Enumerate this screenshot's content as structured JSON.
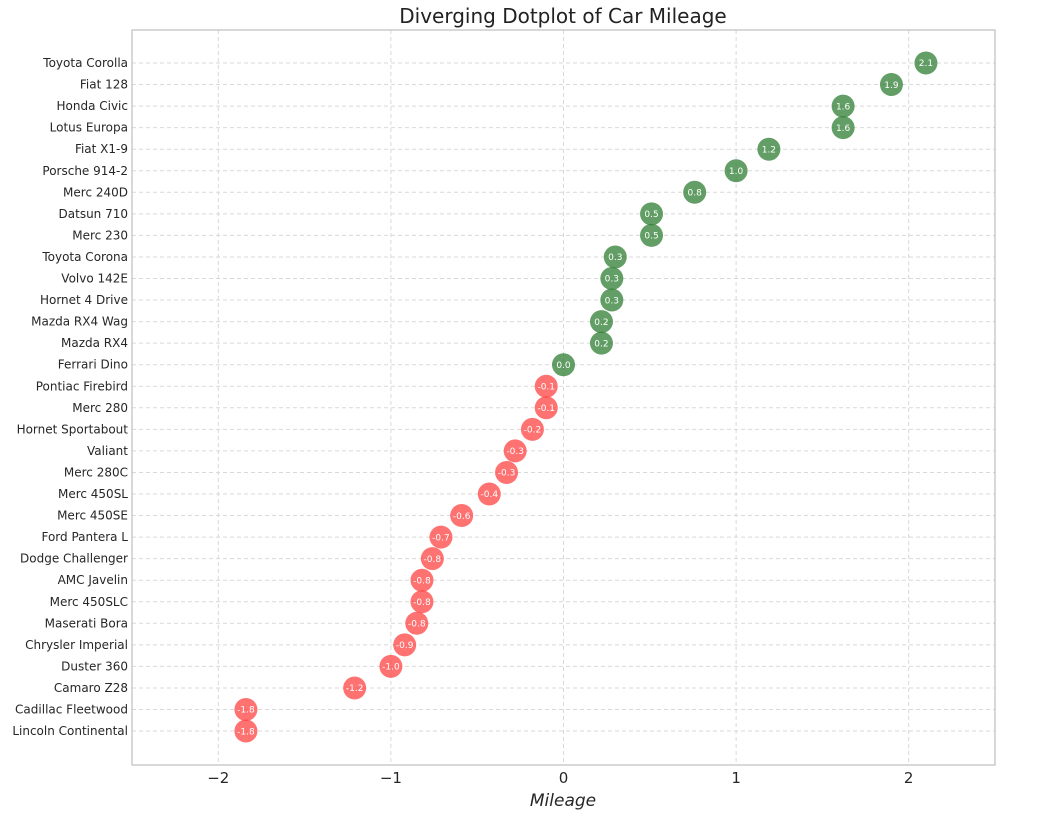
{
  "colors": {
    "positive": "#2e7d32",
    "negative": "#ff3b3b"
  },
  "chart_data": {
    "type": "scatter",
    "title": "Diverging Dotplot of Car Mileage",
    "xlabel": "Mileage",
    "ylabel": "",
    "xlim": [
      -2.5,
      2.5
    ],
    "xticks": [
      -2,
      -1,
      0,
      1,
      2
    ],
    "xtick_labels": [
      "−2",
      "−1",
      "0",
      "1",
      "2"
    ],
    "grid": true,
    "points": [
      {
        "car": "Toyota Corolla",
        "value": 2.1,
        "label": "2.1"
      },
      {
        "car": "Fiat 128",
        "value": 1.9,
        "label": "1.9"
      },
      {
        "car": "Honda Civic",
        "value": 1.62,
        "label": "1.6"
      },
      {
        "car": "Lotus Europa",
        "value": 1.62,
        "label": "1.6"
      },
      {
        "car": "Fiat X1-9",
        "value": 1.19,
        "label": "1.2"
      },
      {
        "car": "Porsche 914-2",
        "value": 1.0,
        "label": "1.0"
      },
      {
        "car": "Merc 240D",
        "value": 0.76,
        "label": "0.8"
      },
      {
        "car": "Datsun 710",
        "value": 0.51,
        "label": "0.5"
      },
      {
        "car": "Merc 230",
        "value": 0.51,
        "label": "0.5"
      },
      {
        "car": "Toyota Corona",
        "value": 0.3,
        "label": "0.3"
      },
      {
        "car": "Volvo 142E",
        "value": 0.28,
        "label": "0.3"
      },
      {
        "car": "Hornet 4 Drive",
        "value": 0.28,
        "label": "0.3"
      },
      {
        "car": "Mazda RX4 Wag",
        "value": 0.22,
        "label": "0.2"
      },
      {
        "car": "Mazda RX4",
        "value": 0.22,
        "label": "0.2"
      },
      {
        "car": "Ferrari Dino",
        "value": 0.0,
        "label": "0.0"
      },
      {
        "car": "Pontiac Firebird",
        "value": -0.1,
        "label": "-0.1"
      },
      {
        "car": "Merc 280",
        "value": -0.1,
        "label": "-0.1"
      },
      {
        "car": "Hornet Sportabout",
        "value": -0.18,
        "label": "-0.2"
      },
      {
        "car": "Valiant",
        "value": -0.28,
        "label": "-0.3"
      },
      {
        "car": "Merc 280C",
        "value": -0.33,
        "label": "-0.3"
      },
      {
        "car": "Merc 450SL",
        "value": -0.43,
        "label": "-0.4"
      },
      {
        "car": "Merc 450SE",
        "value": -0.59,
        "label": "-0.6"
      },
      {
        "car": "Ford Pantera L",
        "value": -0.71,
        "label": "-0.7"
      },
      {
        "car": "Dodge Challenger",
        "value": -0.76,
        "label": "-0.8"
      },
      {
        "car": "AMC Javelin",
        "value": -0.82,
        "label": "-0.8"
      },
      {
        "car": "Merc 450SLC",
        "value": -0.82,
        "label": "-0.8"
      },
      {
        "car": "Maserati Bora",
        "value": -0.85,
        "label": "-0.8"
      },
      {
        "car": "Chrysler Imperial",
        "value": -0.92,
        "label": "-0.9"
      },
      {
        "car": "Duster 360",
        "value": -1.0,
        "label": "-1.0"
      },
      {
        "car": "Camaro Z28",
        "value": -1.21,
        "label": "-1.2"
      },
      {
        "car": "Cadillac Fleetwood",
        "value": -1.84,
        "label": "-1.8"
      },
      {
        "car": "Lincoln Continental",
        "value": -1.84,
        "label": "-1.8"
      }
    ]
  }
}
